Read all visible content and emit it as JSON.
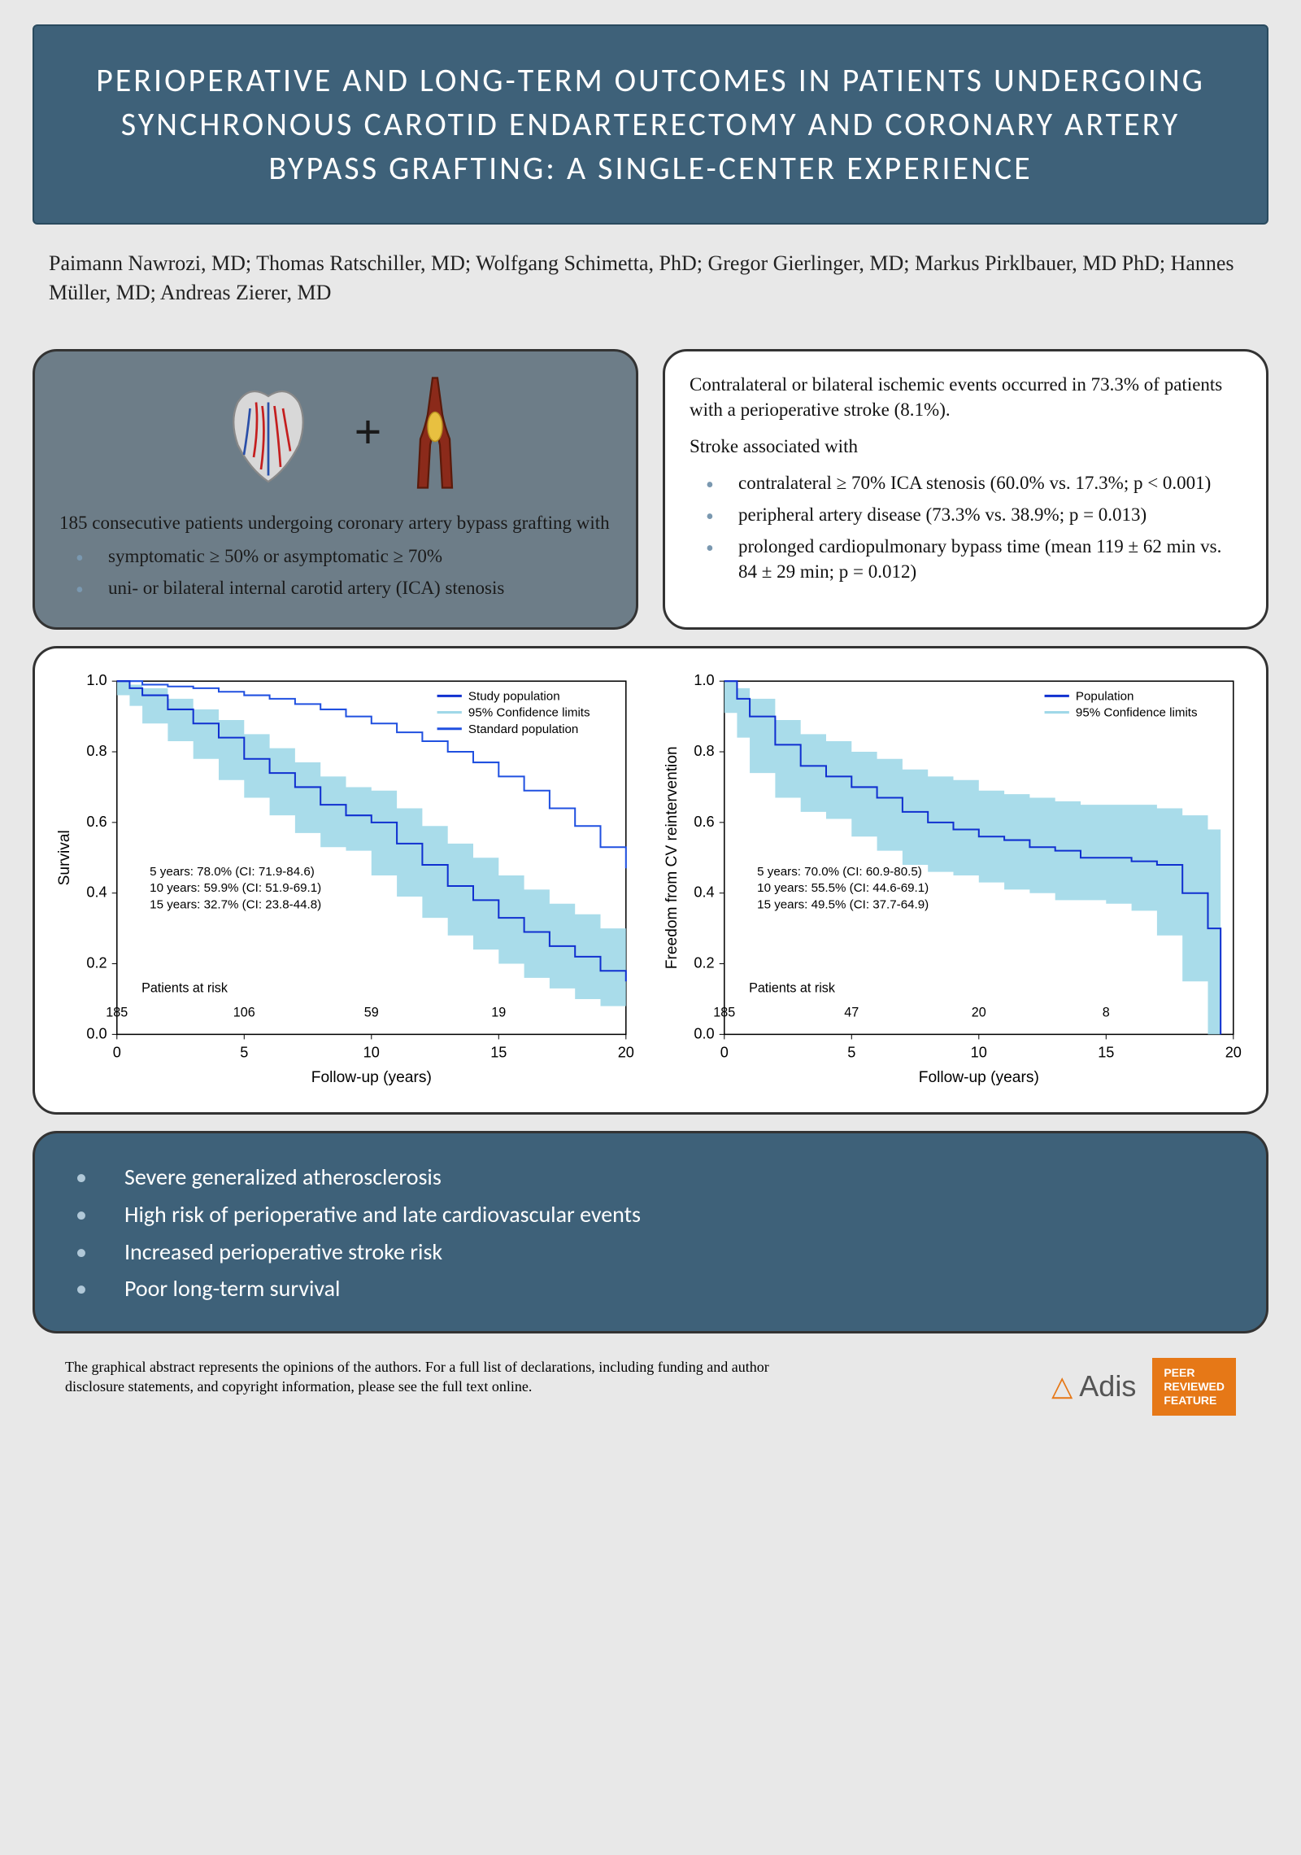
{
  "title": "PERIOPERATIVE AND LONG-TERM OUTCOMES IN PATIENTS UNDERGOING SYNCHRONOUS CAROTID ENDARTERECTOMY AND CORONARY ARTERY BYPASS GRAFTING: A SINGLE-CENTER EXPERIENCE",
  "authors": "Paimann Nawrozi, MD; Thomas Ratschiller, MD; Wolfgang Schimetta, PhD; Gregor Gierlinger, MD; Markus Pirklbauer, MD PhD; Hannes Müller, MD; Andreas Zierer, MD",
  "left_box": {
    "intro": "185 consecutive patients undergoing coronary artery bypass grafting with",
    "bullets": [
      "symptomatic ≥ 50% or asymptomatic ≥ 70%",
      "uni- or bilateral internal carotid artery (ICA) stenosis"
    ]
  },
  "right_box": {
    "p1": "Contralateral or bilateral ischemic events occurred in 73.3% of patients with a perioperative stroke (8.1%).",
    "p2": "Stroke associated with",
    "bullets": [
      "contralateral ≥ 70% ICA stenosis (60.0% vs. 17.3%; p < 0.001)",
      "peripheral artery disease (73.3% vs. 38.9%; p = 0.013)",
      "prolonged cardiopulmonary bypass time (mean 119 ± 62 min vs. 84 ± 29 min; p = 0.012)"
    ]
  },
  "chart1": {
    "type": "survival_curve",
    "ylabel": "Survival",
    "xlabel": "Follow-up (years)",
    "xlim": [
      0,
      20
    ],
    "ylim": [
      0,
      1
    ],
    "yticks": [
      0.0,
      0.2,
      0.4,
      0.6,
      0.8,
      1.0
    ],
    "xticks": [
      0,
      5,
      10,
      15,
      20
    ],
    "legend": [
      "Study population",
      "95% Confidence limits",
      "Standard population"
    ],
    "legend_colors": [
      "#1030d0",
      "#a0d8e8",
      "#2050e0"
    ],
    "line_color": "#1030d0",
    "band_color": "#a0d8e8",
    "std_color": "#2050e0",
    "annotations": [
      "5 years: 78.0% (CI: 71.9-84.6)",
      "10 years: 59.9% (CI: 51.9-69.1)",
      "15 years: 32.7% (CI: 23.8-44.8)"
    ],
    "risk_label": "Patients at risk",
    "risk_counts": [
      "185",
      "106",
      "59",
      "19"
    ],
    "study_curve": [
      [
        0,
        1.0
      ],
      [
        0.5,
        0.98
      ],
      [
        1,
        0.96
      ],
      [
        2,
        0.92
      ],
      [
        3,
        0.88
      ],
      [
        4,
        0.84
      ],
      [
        5,
        0.78
      ],
      [
        6,
        0.74
      ],
      [
        7,
        0.7
      ],
      [
        8,
        0.65
      ],
      [
        9,
        0.62
      ],
      [
        10,
        0.6
      ],
      [
        11,
        0.54
      ],
      [
        12,
        0.48
      ],
      [
        13,
        0.42
      ],
      [
        14,
        0.38
      ],
      [
        15,
        0.33
      ],
      [
        16,
        0.29
      ],
      [
        17,
        0.25
      ],
      [
        18,
        0.22
      ],
      [
        19,
        0.18
      ],
      [
        20,
        0.15
      ]
    ],
    "upper_curve": [
      [
        0,
        1.0
      ],
      [
        0.5,
        0.99
      ],
      [
        1,
        0.98
      ],
      [
        2,
        0.95
      ],
      [
        3,
        0.92
      ],
      [
        4,
        0.89
      ],
      [
        5,
        0.85
      ],
      [
        6,
        0.81
      ],
      [
        7,
        0.77
      ],
      [
        8,
        0.73
      ],
      [
        9,
        0.7
      ],
      [
        10,
        0.69
      ],
      [
        11,
        0.64
      ],
      [
        12,
        0.59
      ],
      [
        13,
        0.54
      ],
      [
        14,
        0.5
      ],
      [
        15,
        0.45
      ],
      [
        16,
        0.41
      ],
      [
        17,
        0.37
      ],
      [
        18,
        0.34
      ],
      [
        19,
        0.3
      ],
      [
        20,
        0.28
      ]
    ],
    "lower_curve": [
      [
        0,
        1.0
      ],
      [
        0.5,
        0.96
      ],
      [
        1,
        0.93
      ],
      [
        2,
        0.88
      ],
      [
        3,
        0.83
      ],
      [
        4,
        0.78
      ],
      [
        5,
        0.72
      ],
      [
        6,
        0.67
      ],
      [
        7,
        0.62
      ],
      [
        8,
        0.57
      ],
      [
        9,
        0.53
      ],
      [
        10,
        0.52
      ],
      [
        11,
        0.45
      ],
      [
        12,
        0.39
      ],
      [
        13,
        0.33
      ],
      [
        14,
        0.28
      ],
      [
        15,
        0.24
      ],
      [
        16,
        0.2
      ],
      [
        17,
        0.16
      ],
      [
        18,
        0.13
      ],
      [
        19,
        0.1
      ],
      [
        20,
        0.08
      ]
    ],
    "std_curve": [
      [
        0,
        1.0
      ],
      [
        1,
        0.99
      ],
      [
        2,
        0.985
      ],
      [
        3,
        0.98
      ],
      [
        4,
        0.97
      ],
      [
        5,
        0.96
      ],
      [
        6,
        0.95
      ],
      [
        7,
        0.935
      ],
      [
        8,
        0.92
      ],
      [
        9,
        0.9
      ],
      [
        10,
        0.88
      ],
      [
        11,
        0.855
      ],
      [
        12,
        0.83
      ],
      [
        13,
        0.8
      ],
      [
        14,
        0.77
      ],
      [
        15,
        0.73
      ],
      [
        16,
        0.69
      ],
      [
        17,
        0.64
      ],
      [
        18,
        0.59
      ],
      [
        19,
        0.53
      ],
      [
        20,
        0.47
      ]
    ]
  },
  "chart2": {
    "type": "survival_curve",
    "ylabel": "Freedom from CV reintervention",
    "xlabel": "Follow-up (years)",
    "xlim": [
      0,
      20
    ],
    "ylim": [
      0,
      1
    ],
    "yticks": [
      0.0,
      0.2,
      0.4,
      0.6,
      0.8,
      1.0
    ],
    "xticks": [
      0,
      5,
      10,
      15,
      20
    ],
    "legend": [
      "Population",
      "95% Confidence limits"
    ],
    "legend_colors": [
      "#1030d0",
      "#a0d8e8"
    ],
    "line_color": "#1030d0",
    "band_color": "#a0d8e8",
    "annotations": [
      "5 years: 70.0% (CI: 60.9-80.5)",
      "10 years: 55.5% (CI: 44.6-69.1)",
      "15 years: 49.5% (CI: 37.7-64.9)"
    ],
    "risk_label": "Patients at risk",
    "risk_counts": [
      "185",
      "47",
      "20",
      "8"
    ],
    "study_curve": [
      [
        0,
        1.0
      ],
      [
        0.5,
        0.95
      ],
      [
        1,
        0.9
      ],
      [
        2,
        0.82
      ],
      [
        3,
        0.76
      ],
      [
        4,
        0.73
      ],
      [
        5,
        0.7
      ],
      [
        6,
        0.67
      ],
      [
        7,
        0.63
      ],
      [
        8,
        0.6
      ],
      [
        9,
        0.58
      ],
      [
        10,
        0.56
      ],
      [
        11,
        0.55
      ],
      [
        12,
        0.53
      ],
      [
        13,
        0.52
      ],
      [
        14,
        0.5
      ],
      [
        15,
        0.5
      ],
      [
        16,
        0.49
      ],
      [
        17,
        0.48
      ],
      [
        18,
        0.4
      ],
      [
        19,
        0.3
      ],
      [
        19.5,
        0.0
      ]
    ],
    "upper_curve": [
      [
        0,
        1.0
      ],
      [
        0.5,
        0.98
      ],
      [
        1,
        0.95
      ],
      [
        2,
        0.89
      ],
      [
        3,
        0.85
      ],
      [
        4,
        0.83
      ],
      [
        5,
        0.8
      ],
      [
        6,
        0.78
      ],
      [
        7,
        0.75
      ],
      [
        8,
        0.73
      ],
      [
        9,
        0.72
      ],
      [
        10,
        0.69
      ],
      [
        11,
        0.68
      ],
      [
        12,
        0.67
      ],
      [
        13,
        0.66
      ],
      [
        14,
        0.65
      ],
      [
        15,
        0.65
      ],
      [
        16,
        0.65
      ],
      [
        17,
        0.64
      ],
      [
        18,
        0.62
      ],
      [
        19,
        0.58
      ],
      [
        19.5,
        0.55
      ]
    ],
    "lower_curve": [
      [
        0,
        1.0
      ],
      [
        0.5,
        0.91
      ],
      [
        1,
        0.84
      ],
      [
        2,
        0.74
      ],
      [
        3,
        0.67
      ],
      [
        4,
        0.63
      ],
      [
        5,
        0.61
      ],
      [
        6,
        0.56
      ],
      [
        7,
        0.52
      ],
      [
        8,
        0.48
      ],
      [
        9,
        0.46
      ],
      [
        10,
        0.45
      ],
      [
        11,
        0.43
      ],
      [
        12,
        0.41
      ],
      [
        13,
        0.4
      ],
      [
        14,
        0.38
      ],
      [
        15,
        0.38
      ],
      [
        16,
        0.37
      ],
      [
        17,
        0.35
      ],
      [
        18,
        0.28
      ],
      [
        19,
        0.15
      ],
      [
        19.5,
        0.0
      ]
    ]
  },
  "conclusions": [
    "Severe generalized atherosclerosis",
    "High risk of perioperative and late cardiovascular events",
    "Increased perioperative stroke risk",
    "Poor long-term survival"
  ],
  "disclaimer": "The graphical abstract represents the opinions of the authors. For a full list of declarations, including funding and author disclosure statements, and copyright information, please see the full text online.",
  "publisher": "Adis",
  "badge": "PEER REVIEWED FEATURE"
}
